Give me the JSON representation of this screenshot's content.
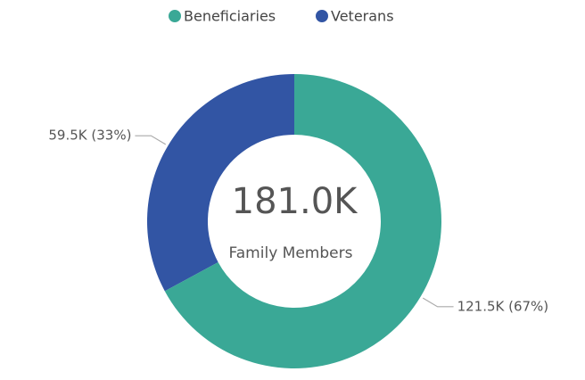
{
  "chart_data": {
    "type": "donut",
    "series": [
      {
        "name": "Beneficiaries",
        "color": "#3aa896",
        "values": [
          121500
        ],
        "value_labels": [
          "121.5K (67%)"
        ]
      },
      {
        "name": "Veterans",
        "color": "#3255a4",
        "values": [
          59500
        ],
        "value_labels": [
          "59.5K (33%)"
        ]
      }
    ],
    "center_label": "181.0K",
    "center_subtitle": "Family Members",
    "legend": "top"
  }
}
